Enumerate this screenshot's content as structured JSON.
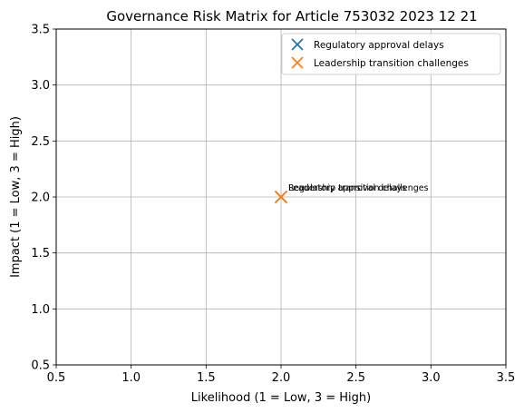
{
  "chart_data": {
    "type": "scatter",
    "title": "Governance Risk Matrix for Article 753032 2023 12 21",
    "xlabel": "Likelihood (1 = Low, 3 = High)",
    "ylabel": "Impact (1 = Low, 3 = High)",
    "xlim": [
      0.5,
      3.5
    ],
    "ylim": [
      0.5,
      3.5
    ],
    "xticks": [
      "0.5",
      "1.0",
      "1.5",
      "2.0",
      "2.5",
      "3.0",
      "3.5"
    ],
    "yticks": [
      "0.5",
      "1.0",
      "1.5",
      "2.0",
      "2.5",
      "3.0",
      "3.5"
    ],
    "grid": true,
    "legend_position": "top-right",
    "marker": "x",
    "series": [
      {
        "name": "Regulatory approval delays",
        "color": "#1f77b4",
        "x": [
          2.0
        ],
        "y": [
          2.0
        ],
        "labels": [
          "Regulatory approval delays"
        ]
      },
      {
        "name": "Leadership transition challenges",
        "color": "#ff7f0e",
        "x": [
          2.0
        ],
        "y": [
          2.0
        ],
        "labels": [
          "Leadership transition challenges"
        ]
      }
    ]
  }
}
